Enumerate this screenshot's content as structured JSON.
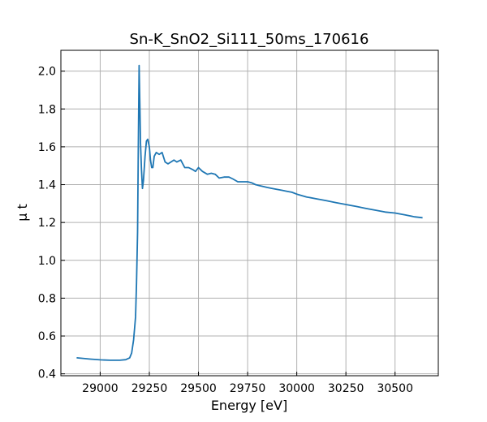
{
  "chart_data": {
    "type": "line",
    "title": "Sn-K_SnO2_Si111_50ms_170616",
    "xlabel": "Energy [eV]",
    "ylabel": "μ t",
    "xlim": [
      28800,
      30720
    ],
    "ylim": [
      0.39,
      2.11
    ],
    "xticks": [
      29000,
      29250,
      29500,
      29750,
      30000,
      30250,
      30500
    ],
    "yticks": [
      0.4,
      0.6,
      0.8,
      1.0,
      1.2,
      1.4,
      1.6,
      1.8,
      2.0
    ],
    "ytick_labels": [
      "0.4",
      "0.6",
      "0.8",
      "1.0",
      "1.2",
      "1.4",
      "1.6",
      "1.8",
      "2.0"
    ],
    "grid": true,
    "series": [
      {
        "color": "#1f77b4",
        "x": [
          28880,
          28950,
          29000,
          29050,
          29100,
          29130,
          29150,
          29160,
          29170,
          29180,
          29185,
          29190,
          29194,
          29198,
          29202,
          29205,
          29210,
          29215,
          29220,
          29228,
          29235,
          29242,
          29250,
          29256,
          29262,
          29268,
          29275,
          29285,
          29300,
          29315,
          29330,
          29345,
          29360,
          29375,
          29390,
          29410,
          29430,
          29450,
          29470,
          29485,
          29500,
          29520,
          29545,
          29565,
          29585,
          29605,
          29630,
          29655,
          29675,
          29700,
          29725,
          29750,
          29770,
          29790,
          29810,
          29830,
          29850,
          29875,
          29900,
          29925,
          29950,
          29975,
          30000,
          30050,
          30100,
          30150,
          30200,
          30250,
          30300,
          30350,
          30400,
          30450,
          30500,
          30550,
          30600,
          30640
        ],
        "y": [
          0.485,
          0.478,
          0.474,
          0.472,
          0.472,
          0.475,
          0.485,
          0.51,
          0.58,
          0.7,
          0.88,
          1.15,
          1.6,
          2.03,
          1.8,
          1.62,
          1.48,
          1.38,
          1.42,
          1.55,
          1.63,
          1.64,
          1.6,
          1.53,
          1.49,
          1.49,
          1.55,
          1.57,
          1.56,
          1.57,
          1.52,
          1.51,
          1.52,
          1.53,
          1.52,
          1.53,
          1.49,
          1.49,
          1.48,
          1.47,
          1.49,
          1.47,
          1.455,
          1.46,
          1.455,
          1.435,
          1.44,
          1.44,
          1.43,
          1.415,
          1.415,
          1.415,
          1.41,
          1.4,
          1.395,
          1.39,
          1.385,
          1.38,
          1.375,
          1.37,
          1.365,
          1.36,
          1.35,
          1.335,
          1.325,
          1.315,
          1.305,
          1.295,
          1.285,
          1.275,
          1.265,
          1.255,
          1.25,
          1.24,
          1.23,
          1.225
        ]
      }
    ]
  }
}
